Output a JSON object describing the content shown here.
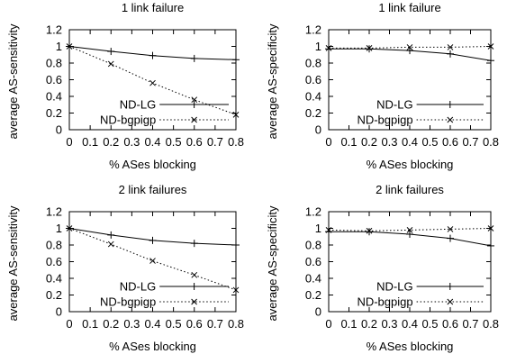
{
  "figure": {
    "name": "multi-panel line chart"
  },
  "chart_data": [
    {
      "type": "line",
      "title": "1 link failure",
      "xlabel": "% ASes blocking",
      "ylabel": "average AS-sensitivity",
      "x": [
        0,
        0.2,
        0.4,
        0.6,
        0.8
      ],
      "xlim": [
        0,
        0.8
      ],
      "ylim": [
        0,
        1.2
      ],
      "xticks": [
        "0",
        "0.1",
        "0.2",
        "0.3",
        "0.4",
        "0.5",
        "0.6",
        "0.7",
        "0.8"
      ],
      "yticks": [
        "0",
        "0.2",
        "0.4",
        "0.6",
        "0.8",
        "1",
        "1.2"
      ],
      "grid": false,
      "legend": "bottom-right",
      "series": [
        {
          "name": "ND-LG",
          "style": "solid",
          "marker": "plus",
          "values": [
            1.0,
            0.94,
            0.89,
            0.855,
            0.84
          ]
        },
        {
          "name": "ND-bgpigp",
          "style": "dotted",
          "marker": "x",
          "values": [
            1.0,
            0.79,
            0.56,
            0.36,
            0.18
          ]
        }
      ]
    },
    {
      "type": "line",
      "title": "1 link failure",
      "xlabel": "% ASes blocking",
      "ylabel": "average AS-specificity",
      "x": [
        0,
        0.2,
        0.4,
        0.6,
        0.8
      ],
      "xlim": [
        0,
        0.8
      ],
      "ylim": [
        0,
        1.2
      ],
      "xticks": [
        "0",
        "0.1",
        "0.2",
        "0.3",
        "0.4",
        "0.5",
        "0.6",
        "0.7",
        "0.8"
      ],
      "yticks": [
        "0",
        "0.2",
        "0.4",
        "0.6",
        "0.8",
        "1",
        "1.2"
      ],
      "grid": false,
      "legend": "bottom-right",
      "series": [
        {
          "name": "ND-LG",
          "style": "solid",
          "marker": "plus",
          "values": [
            0.97,
            0.97,
            0.95,
            0.91,
            0.83
          ]
        },
        {
          "name": "ND-bgpigp",
          "style": "dotted",
          "marker": "x",
          "values": [
            0.98,
            0.98,
            0.99,
            0.99,
            1.0
          ]
        }
      ]
    },
    {
      "type": "line",
      "title": "2 link failures",
      "xlabel": "% ASes blocking",
      "ylabel": "average AS-sensitivity",
      "x": [
        0,
        0.2,
        0.4,
        0.6,
        0.8
      ],
      "xlim": [
        0,
        0.8
      ],
      "ylim": [
        0,
        1.2
      ],
      "xticks": [
        "0",
        "0.1",
        "0.2",
        "0.3",
        "0.4",
        "0.5",
        "0.6",
        "0.7",
        "0.8"
      ],
      "yticks": [
        "0",
        "0.2",
        "0.4",
        "0.6",
        "0.8",
        "1",
        "1.2"
      ],
      "grid": false,
      "legend": "bottom-right",
      "series": [
        {
          "name": "ND-LG",
          "style": "solid",
          "marker": "plus",
          "values": [
            1.0,
            0.92,
            0.855,
            0.82,
            0.8
          ]
        },
        {
          "name": "ND-bgpigp",
          "style": "dotted",
          "marker": "x",
          "values": [
            1.0,
            0.81,
            0.61,
            0.44,
            0.26
          ]
        }
      ]
    },
    {
      "type": "line",
      "title": "2 link failures",
      "xlabel": "% ASes blocking",
      "ylabel": "average AS-specificity",
      "x": [
        0,
        0.2,
        0.4,
        0.6,
        0.8
      ],
      "xlim": [
        0,
        0.8
      ],
      "ylim": [
        0,
        1.2
      ],
      "xticks": [
        "0",
        "0.1",
        "0.2",
        "0.3",
        "0.4",
        "0.5",
        "0.6",
        "0.7",
        "0.8"
      ],
      "yticks": [
        "0",
        "0.2",
        "0.4",
        "0.6",
        "0.8",
        "1",
        "1.2"
      ],
      "grid": false,
      "legend": "bottom-right",
      "series": [
        {
          "name": "ND-LG",
          "style": "solid",
          "marker": "plus",
          "values": [
            0.96,
            0.96,
            0.93,
            0.88,
            0.79
          ]
        },
        {
          "name": "ND-bgpigp",
          "style": "dotted",
          "marker": "x",
          "values": [
            0.98,
            0.97,
            0.98,
            0.99,
            1.0
          ]
        }
      ]
    }
  ]
}
